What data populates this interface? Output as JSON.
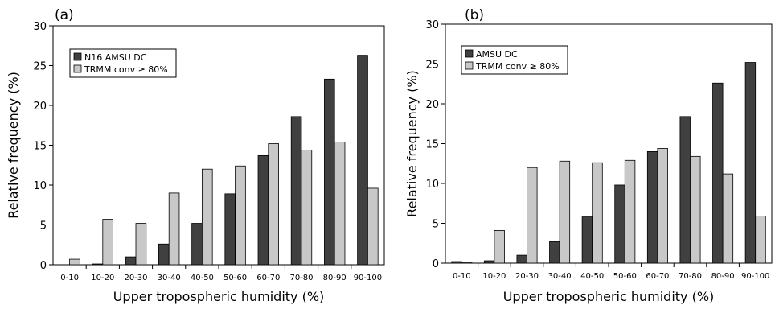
{
  "chart_data": [
    {
      "type": "bar",
      "panel_label": "(a)",
      "xlabel": "Upper tropospheric humidity (%)",
      "ylabel": "Relative frequency (%)",
      "ylim": [
        0,
        30
      ],
      "yticks": [
        "0",
        "5",
        "10",
        "15",
        "20",
        "25",
        "30"
      ],
      "grid": false,
      "legend_position": "top-left",
      "categories": [
        "0-10",
        "10-20",
        "20-30",
        "30-40",
        "40-50",
        "50-60",
        "60-70",
        "70-80",
        "80-90",
        "90-100"
      ],
      "series": [
        {
          "name": "N16 AMSU DC",
          "color": "#404040",
          "values": [
            0,
            0.1,
            1.0,
            2.6,
            5.2,
            8.9,
            13.7,
            18.6,
            23.3,
            26.3
          ]
        },
        {
          "name": "TRMM conv ≥ 80%",
          "color": "#c8c8c8",
          "values": [
            0.7,
            5.7,
            5.2,
            9.0,
            12.0,
            12.4,
            15.2,
            14.4,
            15.4,
            9.6
          ]
        }
      ]
    },
    {
      "type": "bar",
      "panel_label": "(b)",
      "xlabel": "Upper tropospheric humidity (%)",
      "ylabel": "Relative frequency (%)",
      "ylim": [
        0,
        30
      ],
      "yticks": [
        "0",
        "5",
        "10",
        "15",
        "20",
        "25",
        "30"
      ],
      "grid": false,
      "legend_position": "top-left",
      "categories": [
        "0-10",
        "10-20",
        "20-30",
        "30-40",
        "40-50",
        "50-60",
        "60-70",
        "70-80",
        "80-90",
        "90-100"
      ],
      "series": [
        {
          "name": "AMSU DC",
          "color": "#404040",
          "values": [
            0.2,
            0.3,
            1.0,
            2.7,
            5.8,
            9.8,
            14.0,
            18.4,
            22.6,
            25.2
          ]
        },
        {
          "name": "TRMM conv ≥ 80%",
          "color": "#c8c8c8",
          "values": [
            0.1,
            4.1,
            12.0,
            12.8,
            12.6,
            12.9,
            14.4,
            13.4,
            11.2,
            5.9
          ]
        }
      ]
    }
  ]
}
